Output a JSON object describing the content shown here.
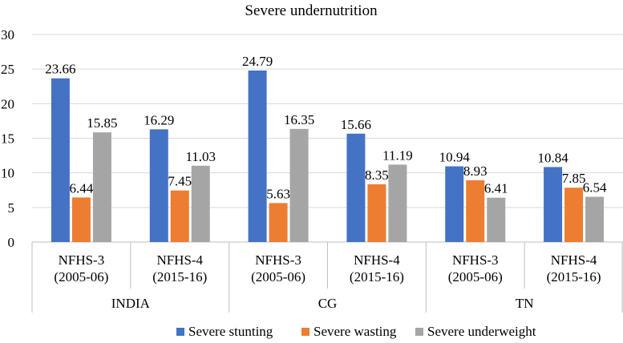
{
  "chart_data": {
    "type": "bar",
    "title": "Severe undernutrition",
    "groups": [
      "INDIA",
      "CG",
      "TN"
    ],
    "categories": [
      {
        "line1": "NFHS-3",
        "line2": "(2005-06)",
        "group": "INDIA"
      },
      {
        "line1": "NFHS-4",
        "line2": "(2015-16)",
        "group": "INDIA"
      },
      {
        "line1": "NFHS-3",
        "line2": "(2005-06)",
        "group": "CG"
      },
      {
        "line1": "NFHS-4",
        "line2": "(2015-16)",
        "group": "CG"
      },
      {
        "line1": "NFHS-3",
        "line2": "(2005-06)",
        "group": "TN"
      },
      {
        "line1": "NFHS-4",
        "line2": "(2015-16)",
        "group": "TN"
      }
    ],
    "series": [
      {
        "name": "Severe stunting",
        "color": "#4472c4",
        "values": [
          "23.66",
          "16.29",
          "24.79",
          "15.66",
          "10.94",
          "10.84"
        ]
      },
      {
        "name": "Severe wasting",
        "color": "#ed7d31",
        "values": [
          "6.44",
          "7.45",
          "5.63",
          "8.35",
          "8.93",
          "7.85"
        ]
      },
      {
        "name": "Severe underweight",
        "color": "#a5a5a5",
        "values": [
          "15.85",
          "11.03",
          "16.35",
          "11.19",
          "6.41",
          "6.54"
        ]
      }
    ],
    "ylim": [
      0,
      30
    ],
    "yticks": [
      "0",
      "5",
      "10",
      "15",
      "20",
      "25",
      "30"
    ],
    "grid": true,
    "legend_position": "bottom"
  }
}
